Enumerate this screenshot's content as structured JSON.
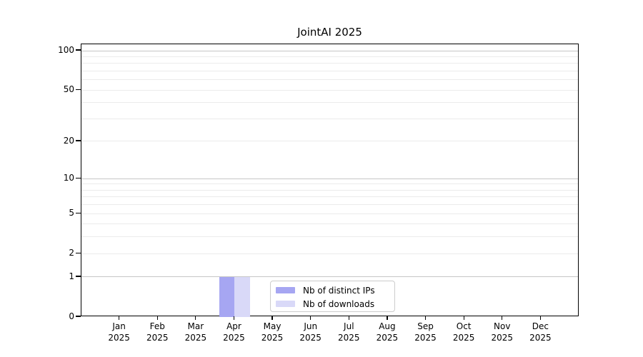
{
  "chart_data": {
    "type": "bar",
    "title": "JointAI 2025",
    "categories": [
      {
        "month": "Jan",
        "year": "2025"
      },
      {
        "month": "Feb",
        "year": "2025"
      },
      {
        "month": "Mar",
        "year": "2025"
      },
      {
        "month": "Apr",
        "year": "2025"
      },
      {
        "month": "May",
        "year": "2025"
      },
      {
        "month": "Jun",
        "year": "2025"
      },
      {
        "month": "Jul",
        "year": "2025"
      },
      {
        "month": "Aug",
        "year": "2025"
      },
      {
        "month": "Sep",
        "year": "2025"
      },
      {
        "month": "Oct",
        "year": "2025"
      },
      {
        "month": "Nov",
        "year": "2025"
      },
      {
        "month": "Dec",
        "year": "2025"
      }
    ],
    "series": [
      {
        "name": "Nb of distinct IPs",
        "color": "#a6a6f2",
        "values": [
          0,
          0,
          0,
          1,
          0,
          0,
          0,
          0,
          0,
          0,
          0,
          0
        ]
      },
      {
        "name": "Nb of downloads",
        "color": "#d9d9f8",
        "values": [
          0,
          0,
          0,
          1,
          0,
          0,
          0,
          0,
          0,
          0,
          0,
          0
        ]
      }
    ],
    "xlabel": "",
    "ylabel": "",
    "yscale": "log1p",
    "ylim": [
      0,
      112
    ],
    "yticks": [
      0,
      1,
      2,
      5,
      10,
      20,
      50,
      100
    ],
    "grid_major": [
      1,
      10,
      100
    ],
    "grid_minor": [
      2,
      3,
      4,
      5,
      6,
      7,
      8,
      9,
      20,
      30,
      40,
      50,
      60,
      70,
      80,
      90
    ],
    "grid": "horizontal",
    "legend_position": "lower center",
    "colors": {
      "grid_major": "#c6c6c6",
      "grid_minor": "#ebebeb",
      "spine": "#000000",
      "text": "#000000",
      "legend_border": "#cccccc",
      "background": "#ffffff"
    }
  }
}
